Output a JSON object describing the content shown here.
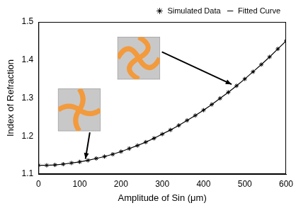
{
  "chart_data": {
    "type": "line",
    "x_label": "Amplitude of Sin (μm)",
    "y_label": "Index of Refraction",
    "x": [
      0,
      20,
      40,
      60,
      80,
      100,
      120,
      140,
      160,
      180,
      200,
      220,
      240,
      260,
      280,
      300,
      320,
      340,
      360,
      380,
      400,
      420,
      440,
      460,
      480,
      500,
      520,
      540,
      560,
      580,
      600
    ],
    "series": [
      {
        "name": "Fitted Curve",
        "color": "#000000",
        "marker": "none",
        "line_style": "solid",
        "values": [
          1.123,
          1.123,
          1.124,
          1.126,
          1.129,
          1.132,
          1.136,
          1.141,
          1.146,
          1.152,
          1.159,
          1.167,
          1.175,
          1.184,
          1.194,
          1.205,
          1.216,
          1.228,
          1.241,
          1.254,
          1.268,
          1.283,
          1.299,
          1.315,
          1.332,
          1.35,
          1.369,
          1.388,
          1.408,
          1.429,
          1.45
        ]
      },
      {
        "name": "Simulated Data",
        "color": "#000000",
        "type": "scatter",
        "marker": "star",
        "values": [
          1.123,
          1.123,
          1.124,
          1.126,
          1.129,
          1.132,
          1.136,
          1.141,
          1.146,
          1.152,
          1.159,
          1.167,
          1.175,
          1.184,
          1.194,
          1.205,
          1.216,
          1.228,
          1.241,
          1.254,
          1.268,
          1.283,
          1.299,
          1.315,
          1.332,
          1.35,
          1.369,
          1.388,
          1.408,
          1.429,
          1.45
        ]
      }
    ],
    "xlim": [
      0,
      600
    ],
    "xticks": [
      0,
      100,
      200,
      300,
      400,
      500,
      600
    ],
    "ylim": [
      1.1,
      1.5
    ],
    "yticks": [
      1.1,
      1.2,
      1.3,
      1.4,
      1.5
    ],
    "grid": false,
    "legend": "top right"
  }
}
